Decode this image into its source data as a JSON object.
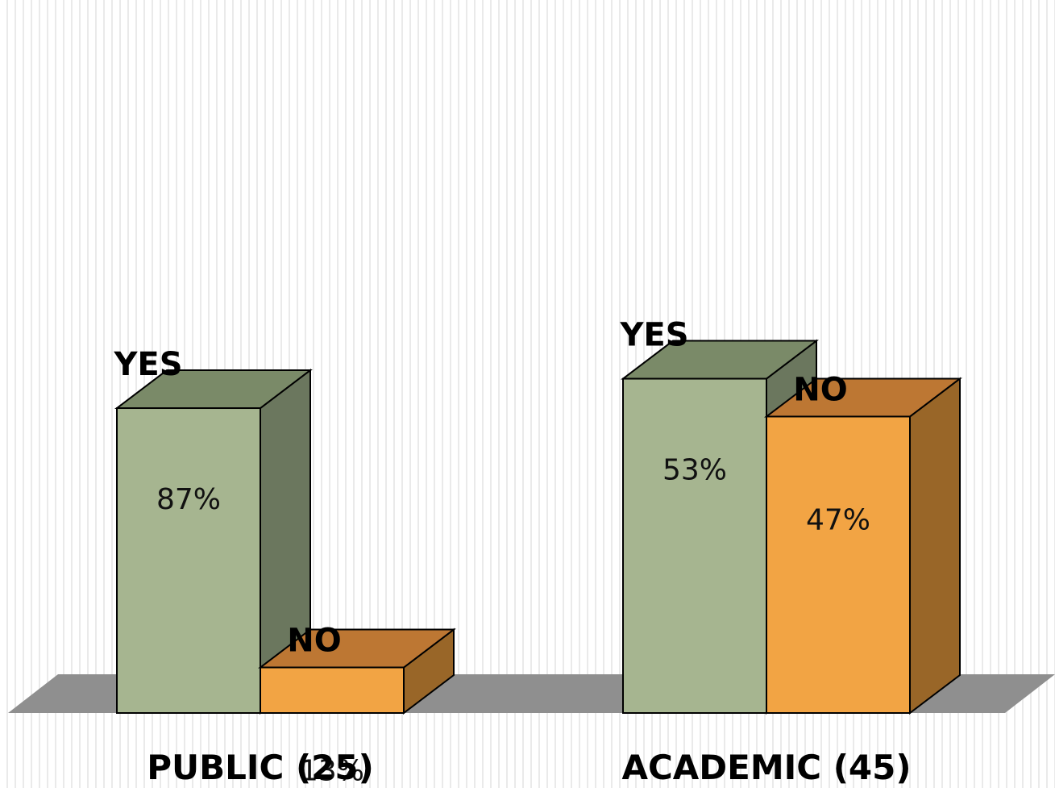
{
  "chart_data": {
    "type": "bar",
    "style": "3d-clustered-column",
    "categories": [
      "PUBLIC (25)",
      "ACADEMIC (45)"
    ],
    "series": [
      {
        "name": "YES",
        "values": [
          87,
          53
        ],
        "unit": "%",
        "colors": {
          "front": "#a6b590",
          "top": "#7a8a68",
          "side": "#6b775e"
        }
      },
      {
        "name": "NO",
        "values": [
          13,
          47
        ],
        "unit": "%",
        "colors": {
          "front": "#f2a444",
          "top": "#bd7733",
          "side": "#996628"
        }
      }
    ],
    "data_labels": [
      [
        "87%",
        "53%"
      ],
      [
        "13%",
        "47%"
      ]
    ],
    "floor_color": "#8f8f8f",
    "grid": false,
    "legend": "none"
  }
}
